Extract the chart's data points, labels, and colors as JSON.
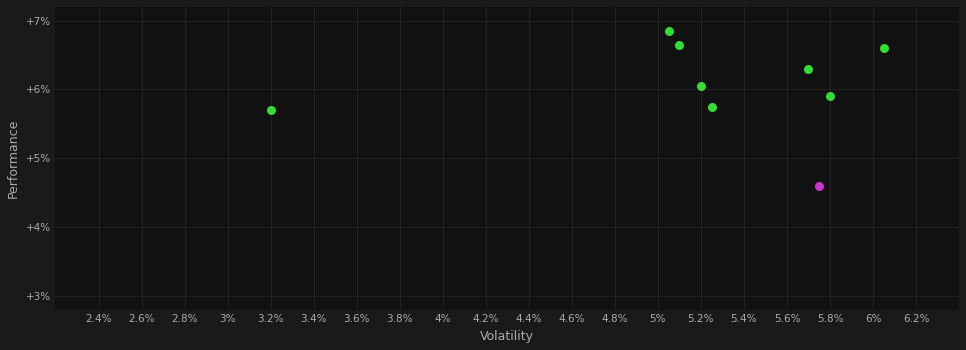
{
  "background_color": "#1a1a1a",
  "plot_bg_color": "#111111",
  "grid_color": "#2a2a2a",
  "green_points": [
    [
      5.05,
      6.85
    ],
    [
      5.1,
      6.65
    ],
    [
      5.2,
      6.05
    ],
    [
      5.25,
      5.75
    ],
    [
      3.2,
      5.7
    ],
    [
      5.7,
      6.3
    ],
    [
      5.8,
      5.9
    ],
    [
      6.05,
      6.6
    ]
  ],
  "magenta_points": [
    [
      5.75,
      4.6
    ]
  ],
  "green_color": "#33dd33",
  "magenta_color": "#cc33cc",
  "xlim": [
    2.2,
    6.4
  ],
  "ylim": [
    2.8,
    7.2
  ],
  "xticks": [
    2.4,
    2.6,
    2.8,
    3.0,
    3.2,
    3.4,
    3.6,
    3.8,
    4.0,
    4.2,
    4.4,
    4.6,
    4.8,
    5.0,
    5.2,
    5.4,
    5.6,
    5.8,
    6.0,
    6.2
  ],
  "xtick_labels": [
    "2.4%",
    "2.6%",
    "2.8%",
    "3%",
    "3.2%",
    "3.4%",
    "3.6%",
    "3.8%",
    "4%",
    "4.2%",
    "4.4%",
    "4.6%",
    "4.8%",
    "5%",
    "5.2%",
    "5.4%",
    "5.6%",
    "5.8%",
    "6%",
    "6.2%"
  ],
  "yticks": [
    3.0,
    4.0,
    5.0,
    6.0,
    7.0
  ],
  "ytick_labels": [
    "+3%",
    "+4%",
    "+5%",
    "+6%",
    "+7%"
  ],
  "xlabel": "Volatility",
  "ylabel": "Performance",
  "marker_size": 42
}
